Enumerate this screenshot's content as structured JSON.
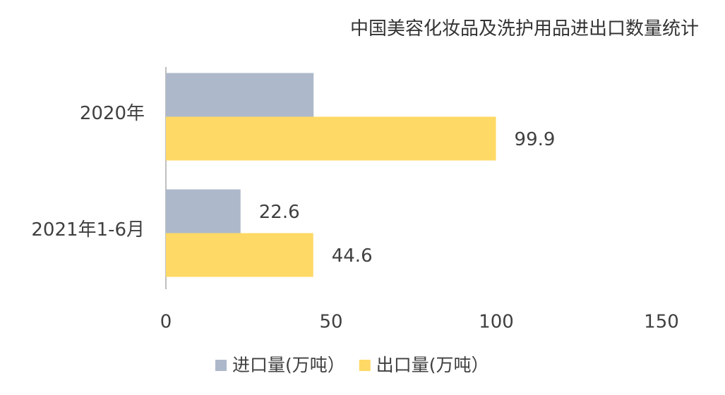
{
  "chart_data": {
    "type": "hbar",
    "title": "中国美容化妆品及洗护用品进出口数量统计",
    "categories": [
      "2020年",
      "2021年1-6月"
    ],
    "series": [
      {
        "name": "进口量(万吨）",
        "color": "#adb9ca",
        "values": [
          44.7,
          22.6
        ],
        "value_labels": [
          null,
          "22.6"
        ]
      },
      {
        "name": "出口量(万吨）",
        "color": "#ffd966",
        "values": [
          99.9,
          44.6
        ],
        "value_labels": [
          "99.9",
          "44.6"
        ]
      }
    ],
    "xlim": [
      0,
      150
    ],
    "xticks": [
      0,
      50,
      100,
      150
    ],
    "grid": false
  }
}
